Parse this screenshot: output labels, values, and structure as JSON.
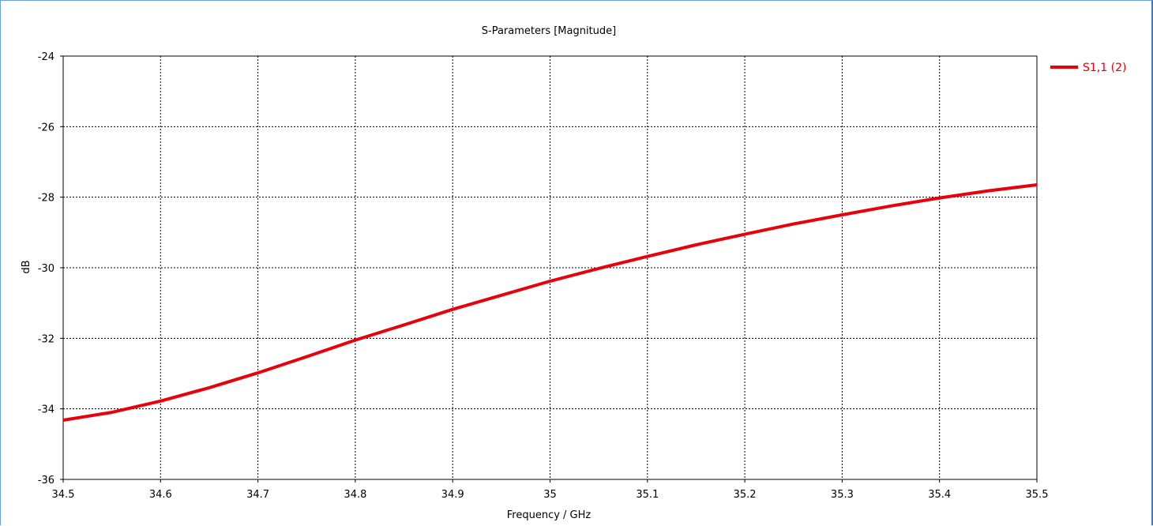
{
  "chart_data": {
    "type": "line",
    "title": "S-Parameters [Magnitude]",
    "xlabel": "Frequency / GHz",
    "ylabel": "dB",
    "xlim": [
      34.5,
      35.5
    ],
    "ylim": [
      -36,
      -24
    ],
    "x_ticks": [
      "34.5",
      "34.6",
      "34.7",
      "34.8",
      "34.9",
      "35",
      "35.1",
      "35.2",
      "35.3",
      "35.4",
      "35.5"
    ],
    "y_ticks": [
      "-24",
      "-26",
      "-28",
      "-30",
      "-32",
      "-34",
      "-36"
    ],
    "grid": true,
    "legend_position": "top-right, outside plot",
    "series": [
      {
        "name": "S1,1 (2)",
        "color": "#e8000b",
        "x": [
          34.5,
          34.55,
          34.6,
          34.65,
          34.7,
          34.75,
          34.8,
          34.85,
          34.9,
          34.95,
          35.0,
          35.05,
          35.1,
          35.15,
          35.2,
          35.25,
          35.3,
          35.35,
          35.4,
          35.45,
          35.5
        ],
        "y": [
          -34.32,
          -34.1,
          -33.78,
          -33.4,
          -32.98,
          -32.52,
          -32.05,
          -31.62,
          -31.18,
          -30.78,
          -30.38,
          -30.02,
          -29.68,
          -29.35,
          -29.05,
          -28.76,
          -28.5,
          -28.25,
          -28.02,
          -27.82,
          -27.65
        ]
      }
    ]
  }
}
